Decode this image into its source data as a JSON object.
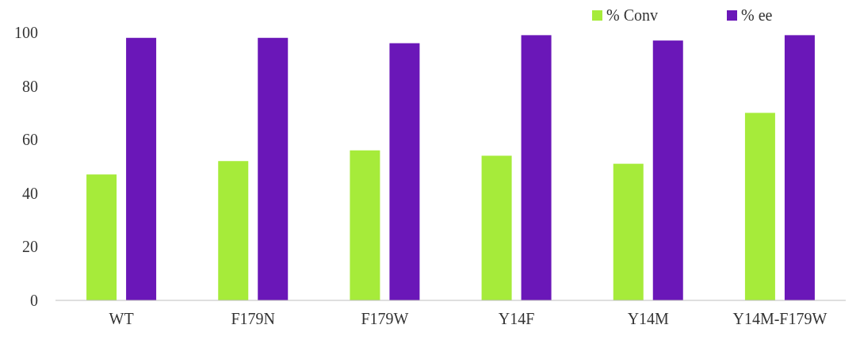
{
  "chart_data": {
    "type": "bar",
    "categories": [
      "WT",
      "F179N",
      "F179W",
      "Y14F",
      "Y14M",
      "Y14M-F179W"
    ],
    "series": [
      {
        "name": "% Conv",
        "color": "#a6eb3a",
        "values": [
          47,
          52,
          56,
          54,
          51,
          70
        ]
      },
      {
        "name": "% ee",
        "color": "#6a17b8",
        "values": [
          98,
          98,
          96,
          99,
          97,
          99
        ]
      }
    ],
    "ylim": [
      0,
      100
    ],
    "yticks": [
      0,
      20,
      40,
      60,
      80,
      100
    ],
    "grid": false,
    "legend": "top right"
  }
}
